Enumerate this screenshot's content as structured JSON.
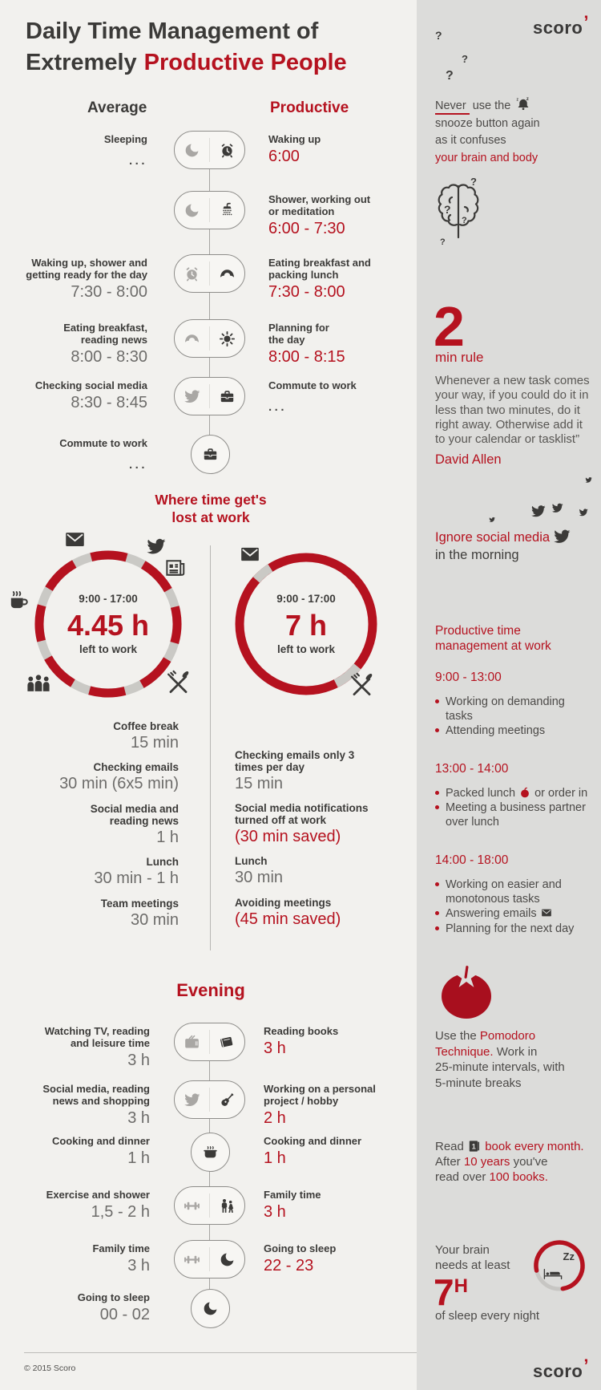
{
  "page": {
    "title_line1": "Daily Time Management of",
    "title_line2_dark": "Extremely",
    "title_line2_red": "Productive People",
    "col_average": "Average",
    "col_productive": "Productive",
    "footer_copyright": "© 2015 Scoro",
    "brand": "scoro",
    "brand_mark": "’"
  },
  "colors": {
    "red": "#b5121f",
    "dark_text": "#3e3d3b",
    "gray_text": "#6d6c6a",
    "main_bg": "#f2f1ee",
    "sidebar_bg": "#dcdcda"
  },
  "morning": {
    "rows": [
      {
        "avg": [
          "Sleeping"
        ],
        "avg_time": "...",
        "icons": [
          "moon",
          "alarm-clock"
        ],
        "prod": [
          "Waking up"
        ],
        "prod_time": "6:00"
      },
      {
        "avg": [],
        "avg_time": "",
        "icons": [
          "moon",
          "shower"
        ],
        "prod": [
          "Shower, working out",
          "or meditation"
        ],
        "prod_time": "6:00 - 7:30"
      },
      {
        "avg": [
          "Waking up, shower and",
          "getting ready for the day"
        ],
        "avg_time": "7:30 - 8:00",
        "icons": [
          "alarm-clock",
          "croissant"
        ],
        "prod": [
          "Eating breakfast and",
          "packing lunch"
        ],
        "prod_time": "7:30 - 8:00"
      },
      {
        "avg": [
          "Eating breakfast,",
          "reading news"
        ],
        "avg_time": "8:00 - 8:30",
        "icons": [
          "croissant",
          "sun"
        ],
        "prod": [
          "Planning for",
          "the day"
        ],
        "prod_time": "8:00 - 8:15"
      },
      {
        "avg": [
          "Checking social media"
        ],
        "avg_time": "8:30 - 8:45",
        "icons": [
          "twitter",
          "briefcase"
        ],
        "prod": [
          "Commute to work"
        ],
        "prod_time": "..."
      },
      {
        "avg": [
          "Commute to work"
        ],
        "avg_time": "...",
        "icons": [
          "briefcase"
        ],
        "prod": [],
        "prod_time": ""
      }
    ]
  },
  "lost": {
    "title": [
      "Where time get's",
      "lost at work"
    ],
    "left_circle": {
      "time": "9:00 - 17:00",
      "hours": "4.45 h",
      "sub": "left to work"
    },
    "right_circle": {
      "time": "9:00 - 17:00",
      "hours": "7 h",
      "sub": "left to work"
    },
    "left_list": [
      {
        "label": [
          "Coffee break"
        ],
        "value": "15 min",
        "red": false
      },
      {
        "label": [
          "Checking emails"
        ],
        "value": "30 min (6x5 min)",
        "red": false
      },
      {
        "label": [
          "Social media and",
          "reading news"
        ],
        "value": "1 h",
        "red": false
      },
      {
        "label": [
          "Lunch"
        ],
        "value": "30 min - 1 h",
        "red": false
      },
      {
        "label": [
          "Team meetings"
        ],
        "value": "30 min",
        "red": false
      }
    ],
    "right_list": [
      {
        "label": [
          "Checking emails only 3",
          "times per day"
        ],
        "value": "15 min",
        "red": false
      },
      {
        "label": [
          "Social media notifications",
          "turned off at work"
        ],
        "value": "(30 min saved)",
        "red": true
      },
      {
        "label": [
          "Lunch"
        ],
        "value": "30 min",
        "red": false
      },
      {
        "label": [
          "Avoiding meetings"
        ],
        "value": "(45 min saved)",
        "red": true
      }
    ]
  },
  "evening": {
    "title": "Evening",
    "rows": [
      {
        "avg": [
          "Watching TV, reading",
          "and leisure time"
        ],
        "avg_time": "3 h",
        "icons": [
          "tv",
          "book"
        ],
        "prod": [
          "Reading books"
        ],
        "prod_time": "3 h"
      },
      {
        "avg": [
          "Social media, reading",
          "news and shopping"
        ],
        "avg_time": "3 h",
        "icons": [
          "twitter",
          "guitar"
        ],
        "prod": [
          "Working on a personal",
          "project / hobby"
        ],
        "prod_time": "2 h"
      },
      {
        "avg": [
          "Cooking and dinner"
        ],
        "avg_time": "1 h",
        "icons": [
          "pot"
        ],
        "prod": [
          "Cooking and dinner"
        ],
        "prod_time": "1 h"
      },
      {
        "avg": [
          "Exercise and shower"
        ],
        "avg_time": "1,5 - 2 h",
        "icons": [
          "dumbbell",
          "family"
        ],
        "prod": [
          "Family time"
        ],
        "prod_time": "3 h"
      },
      {
        "avg": [
          "Family time"
        ],
        "avg_time": "3 h",
        "icons": [
          "dumbbell",
          "moon"
        ],
        "prod": [
          "Going to sleep"
        ],
        "prod_time": "22 - 23"
      },
      {
        "avg": [
          "Going to sleep"
        ],
        "avg_time": "00 - 02",
        "icons": [
          "moon"
        ],
        "prod": [],
        "prod_time": ""
      }
    ]
  },
  "sidebar": {
    "qmarks": [
      "?",
      "?",
      "?",
      "?",
      "?"
    ],
    "tip_snooze": {
      "lines": [
        [
          {
            "t": "Never",
            "u": true
          },
          {
            "t": " use the "
          },
          {
            "icon": "bell"
          }
        ],
        [
          {
            "t": "snooze button again"
          }
        ],
        [
          {
            "t": "as it confuses"
          }
        ],
        [
          {
            "t": "your brain and body",
            "red": true
          }
        ]
      ]
    },
    "rule": {
      "number": "2",
      "label": "min rule",
      "quote": [
        "Whenever a new task comes",
        "your way, if you could do it in",
        "less than two minutes, do it",
        "right away. Otherwise add it",
        "to your calendar or tasklist”"
      ],
      "author": "David Allen"
    },
    "social": {
      "line_red": "Ignore social media",
      "line_dark": "in the morning"
    },
    "schedule": {
      "title": [
        "Productive time",
        "management at work"
      ],
      "blocks": [
        {
          "time": "9:00 - 13:00",
          "items": [
            {
              "lines": [
                [
                  {
                    "t": "Working on demanding"
                  }
                ],
                [
                  {
                    "t": "tasks"
                  }
                ]
              ]
            },
            {
              "lines": [
                [
                  {
                    "t": "Attending meetings"
                  }
                ]
              ]
            }
          ]
        },
        {
          "time": "13:00 - 14:00",
          "items": [
            {
              "lines": [
                [
                  {
                    "t": "Packed lunch "
                  },
                  {
                    "icon": "apple"
                  },
                  {
                    "t": " or order in"
                  }
                ]
              ]
            },
            {
              "lines": [
                [
                  {
                    "t": "Meeting a business partner"
                  }
                ],
                [
                  {
                    "t": "over lunch"
                  }
                ]
              ]
            }
          ]
        },
        {
          "time": "14:00 - 18:00",
          "items": [
            {
              "lines": [
                [
                  {
                    "t": "Working on easier and"
                  }
                ],
                [
                  {
                    "t": "monotonous tasks"
                  }
                ]
              ]
            },
            {
              "lines": [
                [
                  {
                    "t": "Answering emails "
                  },
                  {
                    "icon": "envelope-small"
                  }
                ]
              ]
            },
            {
              "lines": [
                [
                  {
                    "t": "Planning for the next day"
                  }
                ]
              ]
            }
          ]
        }
      ]
    },
    "pomodoro": {
      "lines": [
        [
          {
            "t": "Use the "
          },
          {
            "t": "Pomodoro",
            "red": true
          }
        ],
        [
          {
            "t": "Technique.",
            "red": true
          },
          {
            "t": " Work in"
          }
        ],
        [
          {
            "t": "25-minute intervals, with"
          }
        ],
        [
          {
            "t": "5-minute breaks"
          }
        ]
      ]
    },
    "reading": {
      "lines": [
        [
          {
            "t": "Read "
          },
          {
            "icon": "book-one"
          },
          {
            "t": " "
          },
          {
            "t": "book every month.",
            "red": true
          }
        ],
        [
          {
            "t": "After "
          },
          {
            "t": "10 years",
            "red": true
          },
          {
            "t": " you've"
          }
        ],
        [
          {
            "t": "read over "
          },
          {
            "t": "100 books.",
            "red": true
          }
        ]
      ]
    },
    "sleep": {
      "line1": "Your brain",
      "line2": "needs at least",
      "big": "7",
      "sup": "H",
      "line3": "of sleep every night",
      "zz": "Zz"
    }
  }
}
